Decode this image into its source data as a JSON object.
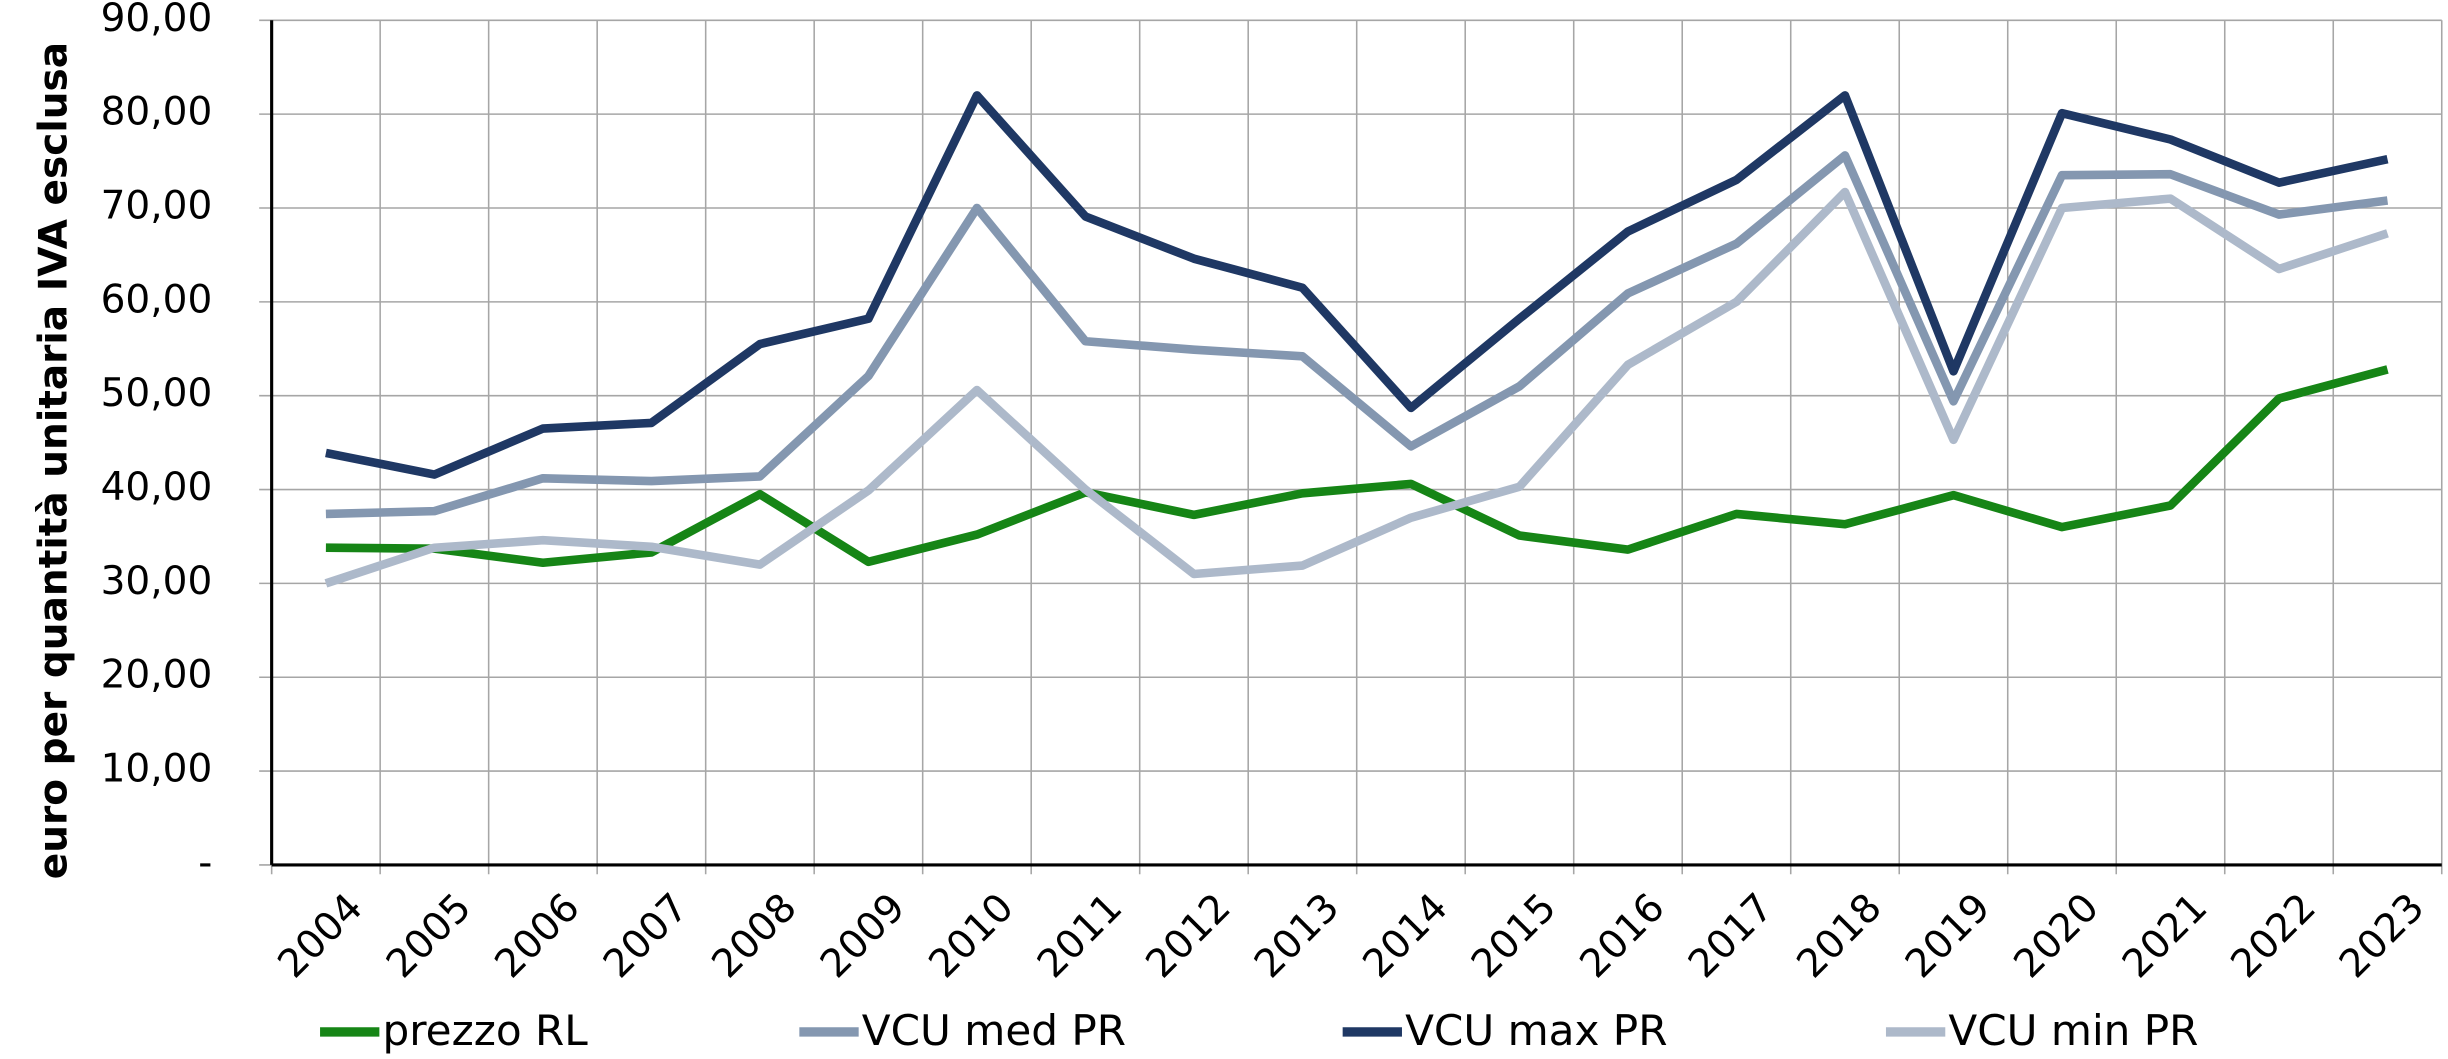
{
  "chart_data": {
    "type": "line",
    "y_label": "euro per quantità unitaria  IVA esclusa",
    "categories": [
      "2004",
      "2005",
      "2006",
      "2007",
      "2008",
      "2009",
      "2010",
      "2011",
      "2012",
      "2013",
      "2014",
      "2015",
      "2016",
      "2017",
      "2018",
      "2019",
      "2020",
      "2021",
      "2022",
      "2023"
    ],
    "series": [
      {
        "name": "prezzo RL",
        "color": "#168516",
        "values": [
          33.8,
          33.7,
          32.2,
          33.3,
          39.5,
          32.3,
          35.2,
          39.7,
          37.3,
          39.6,
          40.6,
          35.1,
          33.6,
          37.4,
          36.3,
          39.4,
          36.0,
          38.3,
          49.7,
          52.8
        ]
      },
      {
        "name": "VCU med PR",
        "color": "#8497b0",
        "values": [
          37.4,
          37.7,
          41.2,
          40.9,
          41.4,
          52.1,
          70.0,
          55.8,
          54.9,
          54.2,
          44.6,
          51.0,
          60.9,
          66.2,
          75.6,
          49.4,
          73.5,
          73.6,
          69.3,
          70.8
        ]
      },
      {
        "name": "VCU max PR",
        "color": "#1f3864",
        "values": [
          43.9,
          41.6,
          46.5,
          47.1,
          55.5,
          58.2,
          82.0,
          69.1,
          64.6,
          61.5,
          48.7,
          58.2,
          67.5,
          73.0,
          82.0,
          52.6,
          80.1,
          77.3,
          72.7,
          75.2
        ]
      },
      {
        "name": "VCU min PR",
        "color": "#adb9ca",
        "values": [
          30.0,
          33.8,
          34.6,
          33.9,
          32.0,
          39.9,
          50.6,
          40.0,
          31.0,
          31.9,
          37.0,
          40.3,
          53.3,
          60.0,
          71.7,
          45.3,
          70.0,
          71.0,
          63.5,
          67.3
        ]
      }
    ],
    "ylim": [
      0,
      90
    ],
    "yticks": [
      {
        "value": 0,
        "label": "-"
      },
      {
        "value": 10,
        "label": "10,00"
      },
      {
        "value": 20,
        "label": "20,00"
      },
      {
        "value": 30,
        "label": "30,00"
      },
      {
        "value": 40,
        "label": "40,00"
      },
      {
        "value": 50,
        "label": "50,00"
      },
      {
        "value": 60,
        "label": "60,00"
      },
      {
        "value": 70,
        "label": "70,00"
      },
      {
        "value": 80,
        "label": "80,00"
      },
      {
        "value": 90,
        "label": "90,00"
      }
    ],
    "grid": true,
    "legend": "bottom"
  }
}
